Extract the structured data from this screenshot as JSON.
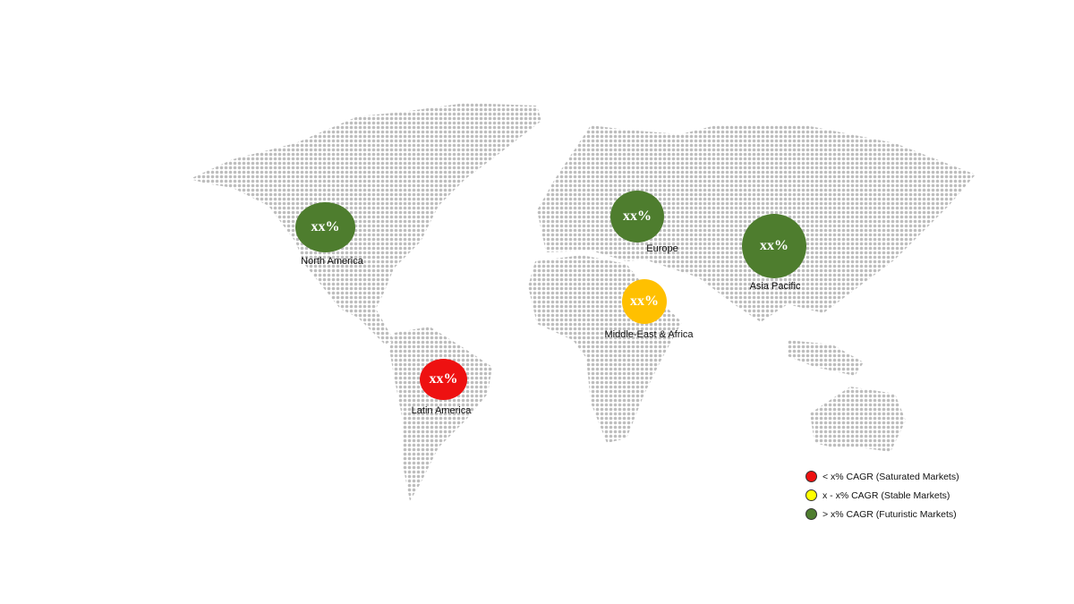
{
  "colors": {
    "saturated": "#ee1111",
    "stable": "#ffd700",
    "futuristic": "#4e7d2e",
    "stable_bubble": "#ffc000",
    "map_dots": "#bdbdbd"
  },
  "regions": [
    {
      "name": "North America",
      "value": "xx%",
      "category": "futuristic"
    },
    {
      "name": "Europe",
      "value": "xx%",
      "category": "futuristic"
    },
    {
      "name": "Asia Pacific",
      "value": "xx%",
      "category": "futuristic"
    },
    {
      "name": "Middle-East & Africa",
      "value": "xx%",
      "category": "stable"
    },
    {
      "name": "Latin America",
      "value": "xx%",
      "category": "saturated"
    }
  ],
  "legend": [
    {
      "label": "< x% CAGR (Saturated Markets)",
      "color": "#ee1111"
    },
    {
      "label": "x - x% CAGR (Stable Markets)",
      "color": "#ffff00"
    },
    {
      "label": "> x% CAGR (Futuristic Markets)",
      "color": "#4e7d2e"
    }
  ]
}
